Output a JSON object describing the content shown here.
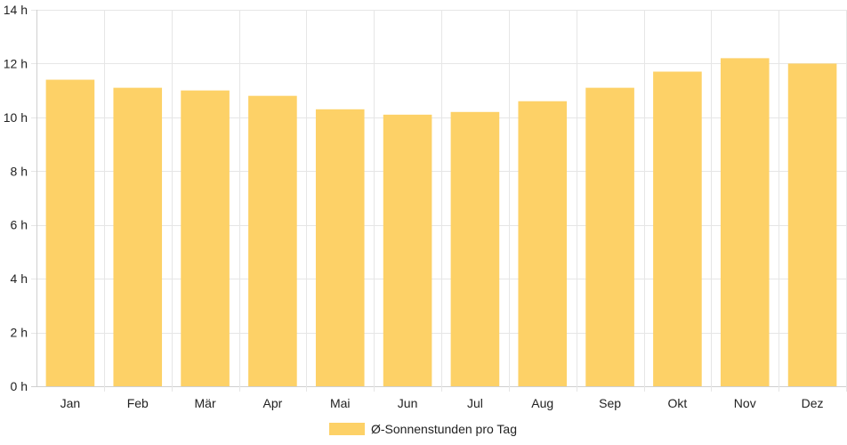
{
  "chart_data": {
    "type": "bar",
    "categories": [
      "Jan",
      "Feb",
      "Mär",
      "Apr",
      "Mai",
      "Jun",
      "Jul",
      "Aug",
      "Sep",
      "Okt",
      "Nov",
      "Dez"
    ],
    "series": [
      {
        "name": "Ø-Sonnenstunden pro Tag",
        "values": [
          11.4,
          11.1,
          11.0,
          10.8,
          10.3,
          10.1,
          10.2,
          10.6,
          11.1,
          11.7,
          12.2,
          12.0
        ]
      }
    ],
    "ylim": [
      0,
      14
    ],
    "yticks": [
      0,
      2,
      4,
      6,
      8,
      10,
      12,
      14
    ],
    "y_unit_suffix": " h",
    "grid": true,
    "legend_position": "bottom",
    "colors": {
      "bar": "#fdd167",
      "grid": "#e6e6e6",
      "axis": "#cfcfcf",
      "text": "#222222"
    }
  }
}
